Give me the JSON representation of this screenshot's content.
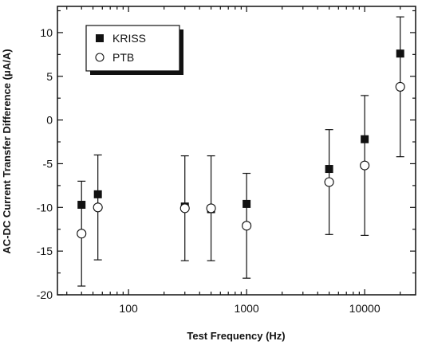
{
  "chart_data": {
    "type": "scatter",
    "xlabel": "Test Frequency (Hz)",
    "ylabel": "AC-DC Current Transfer Difference (μA/A)",
    "x_scale": "log",
    "xlim": [
      25,
      27000
    ],
    "ylim": [
      -20,
      13
    ],
    "x_major_ticks": [
      100,
      1000,
      10000
    ],
    "x_tick_labels": [
      "100",
      "1000",
      "10000"
    ],
    "y_major_ticks": [
      -20,
      -15,
      -10,
      -5,
      0,
      5,
      10
    ],
    "y_tick_labels": [
      "-20",
      "-15",
      "-10",
      "-5",
      "0",
      "5",
      "10"
    ],
    "grid": false,
    "legend_position": "top-left",
    "series": [
      {
        "name": "KRISS",
        "marker": "filled-square",
        "color": "#111111",
        "points": [
          {
            "x": 40,
            "y": -9.7
          },
          {
            "x": 55,
            "y": -8.5
          },
          {
            "x": 300,
            "y": -9.9
          },
          {
            "x": 500,
            "y": -10.2
          },
          {
            "x": 1000,
            "y": -9.6
          },
          {
            "x": 5000,
            "y": -5.6
          },
          {
            "x": 10000,
            "y": -2.2
          },
          {
            "x": 20000,
            "y": 7.6
          }
        ]
      },
      {
        "name": "PTB",
        "marker": "open-circle",
        "color": "#111111",
        "points": [
          {
            "x": 40,
            "y": -13.0,
            "err": 6
          },
          {
            "x": 55,
            "y": -10.0,
            "err": 6
          },
          {
            "x": 300,
            "y": -10.1,
            "err": 6
          },
          {
            "x": 500,
            "y": -10.1,
            "err": 6
          },
          {
            "x": 1000,
            "y": -12.1,
            "err": 6
          },
          {
            "x": 5000,
            "y": -7.1,
            "err": 6
          },
          {
            "x": 10000,
            "y": -5.2,
            "err": 8
          },
          {
            "x": 20000,
            "y": 3.8,
            "err": 8
          }
        ]
      }
    ]
  }
}
